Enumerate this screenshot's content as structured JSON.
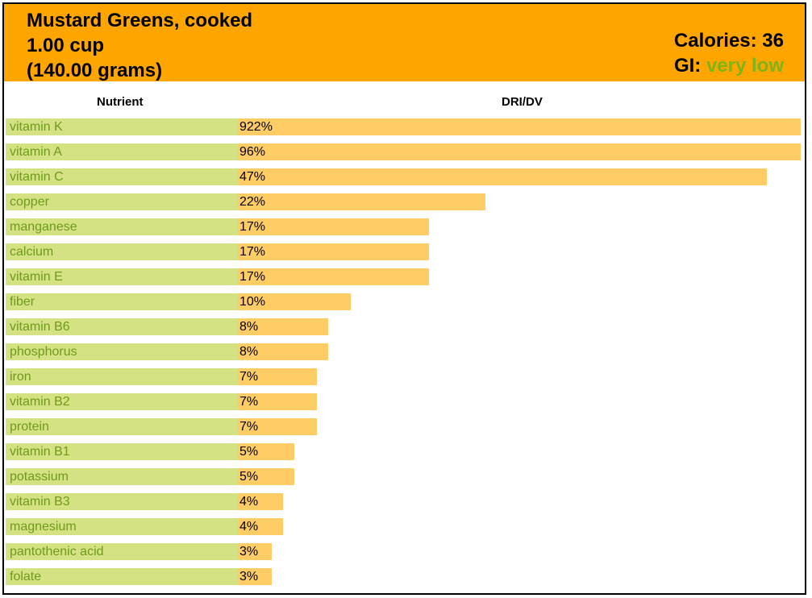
{
  "header": {
    "title": "Mustard Greens, cooked",
    "serving": "1.00 cup",
    "grams": "(140.00 grams)",
    "calories_label": "Calories: 36",
    "gi_label": "GI:",
    "gi_value": "very low"
  },
  "columns": {
    "nutrient": "Nutrient",
    "dridv": "DRI/DV"
  },
  "colors": {
    "header_bg": "#ffa500",
    "name_bg": "#d4e283",
    "name_text": "#6f9a1c",
    "bar": "#ffcc66",
    "gi_text": "#7cb518"
  },
  "chart_data": {
    "type": "bar",
    "orientation": "horizontal",
    "xlabel": "DRI/DV",
    "ylabel": "Nutrient",
    "categories": [
      "vitamin K",
      "vitamin A",
      "vitamin C",
      "copper",
      "manganese",
      "calcium",
      "vitamin E",
      "fiber",
      "vitamin B6",
      "phosphorus",
      "iron",
      "vitamin B2",
      "protein",
      "vitamin B1",
      "potassium",
      "vitamin B3",
      "magnesium",
      "pantothenic acid",
      "folate"
    ],
    "values": [
      922,
      96,
      47,
      22,
      17,
      17,
      17,
      10,
      8,
      8,
      7,
      7,
      7,
      5,
      5,
      4,
      4,
      3,
      3
    ],
    "labels": [
      "922%",
      "96%",
      "47%",
      "22%",
      "17%",
      "17%",
      "17%",
      "10%",
      "8%",
      "8%",
      "7%",
      "7%",
      "7%",
      "5%",
      "5%",
      "4%",
      "4%",
      "3%",
      "3%"
    ],
    "display_cap": 50
  }
}
